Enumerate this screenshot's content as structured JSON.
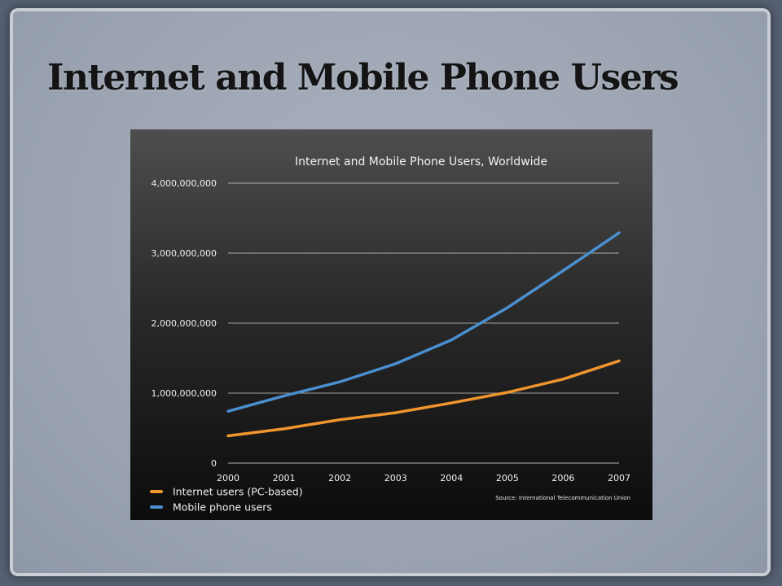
{
  "slide": {
    "title": "Internet and Mobile Phone Users"
  },
  "chart_data": {
    "type": "line",
    "title": "Internet and Mobile Phone Users, Worldwide",
    "x": [
      "2000",
      "2001",
      "2002",
      "2003",
      "2004",
      "2005",
      "2006",
      "2007"
    ],
    "y_tick_labels": [
      "0",
      "1,000,000,000",
      "2,000,000,000",
      "3,000,000,000",
      "4,000,000,000"
    ],
    "y_ticks": [
      0,
      1000000000,
      2000000000,
      3000000000,
      4000000000
    ],
    "ylim": [
      0,
      4000000000
    ],
    "grid": true,
    "legend_position": "bottom-left",
    "series": [
      {
        "name": "Internet users (PC-based)",
        "color": "#f0952e",
        "values": [
          390000000,
          490000000,
          620000000,
          720000000,
          860000000,
          1010000000,
          1200000000,
          1460000000
        ]
      },
      {
        "name": "Mobile phone users",
        "color": "#4a8fd0",
        "values": [
          740000000,
          960000000,
          1160000000,
          1420000000,
          1760000000,
          2220000000,
          2750000000,
          3290000000
        ]
      }
    ],
    "source": "Source: International Telecommunication Union"
  }
}
